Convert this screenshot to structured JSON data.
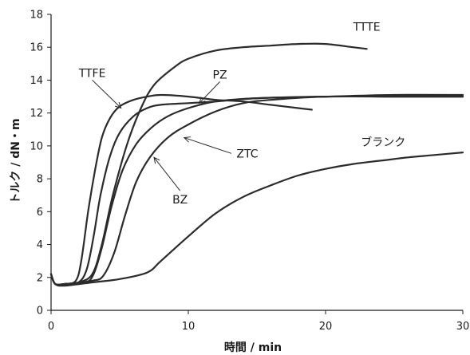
{
  "chart_data": {
    "type": "line",
    "xlabel": "時間 / min",
    "ylabel": "トルク / dN・m",
    "xlim": [
      0,
      30
    ],
    "ylim": [
      0,
      18
    ],
    "x_ticks": [
      0,
      10,
      20,
      30
    ],
    "y_ticks": [
      0,
      2,
      4,
      6,
      8,
      10,
      12,
      14,
      16,
      18
    ],
    "grid": false,
    "legend": "none",
    "series": [
      {
        "name": "TTTE",
        "points": [
          [
            0,
            2.2
          ],
          [
            0.3,
            1.6
          ],
          [
            1,
            1.6
          ],
          [
            2,
            1.7
          ],
          [
            3,
            2.2
          ],
          [
            3.7,
            4
          ],
          [
            4.5,
            7
          ],
          [
            5.5,
            10
          ],
          [
            6.5,
            12.2
          ],
          [
            7.5,
            13.7
          ],
          [
            9,
            14.8
          ],
          [
            10,
            15.3
          ],
          [
            12,
            15.8
          ],
          [
            14,
            16
          ],
          [
            16,
            16.1
          ],
          [
            18,
            16.2
          ],
          [
            20,
            16.2
          ],
          [
            22,
            16
          ],
          [
            23,
            15.9
          ]
        ]
      },
      {
        "name": "TTFE",
        "points": [
          [
            0,
            2.2
          ],
          [
            0.3,
            1.6
          ],
          [
            1,
            1.6
          ],
          [
            1.8,
            1.8
          ],
          [
            2.2,
            3
          ],
          [
            2.7,
            6
          ],
          [
            3.2,
            8.5
          ],
          [
            3.7,
            10.5
          ],
          [
            4.3,
            11.7
          ],
          [
            5,
            12.4
          ],
          [
            6,
            12.8
          ],
          [
            7,
            13
          ],
          [
            8,
            13.1
          ],
          [
            10,
            13
          ],
          [
            12,
            12.8
          ],
          [
            14,
            12.7
          ],
          [
            16,
            12.5
          ],
          [
            18,
            12.3
          ],
          [
            19,
            12.2
          ]
        ]
      },
      {
        "name": "PZ",
        "points": [
          [
            0,
            2.2
          ],
          [
            0.3,
            1.6
          ],
          [
            1,
            1.6
          ],
          [
            2,
            1.7
          ],
          [
            2.6,
            2.5
          ],
          [
            3.1,
            4.5
          ],
          [
            3.6,
            7
          ],
          [
            4.3,
            9.4
          ],
          [
            5,
            10.8
          ],
          [
            6,
            11.8
          ],
          [
            7,
            12.3
          ],
          [
            8,
            12.5
          ],
          [
            10,
            12.6
          ],
          [
            12,
            12.7
          ],
          [
            15,
            12.9
          ],
          [
            20,
            13
          ],
          [
            25,
            13.1
          ],
          [
            30,
            13.1
          ]
        ]
      },
      {
        "name": "ZTC",
        "points": [
          [
            0,
            2.2
          ],
          [
            0.3,
            1.6
          ],
          [
            1,
            1.6
          ],
          [
            2.5,
            1.7
          ],
          [
            3.1,
            2.2
          ],
          [
            3.7,
            3.8
          ],
          [
            4.4,
            6.3
          ],
          [
            5.2,
            8.5
          ],
          [
            6.2,
            10.1
          ],
          [
            7.3,
            11.1
          ],
          [
            8.5,
            11.8
          ],
          [
            10,
            12.3
          ],
          [
            12,
            12.7
          ],
          [
            15,
            12.9
          ],
          [
            20,
            13
          ],
          [
            25,
            13
          ],
          [
            30,
            13
          ]
        ]
      },
      {
        "name": "BZ",
        "points": [
          [
            0,
            2.2
          ],
          [
            0.3,
            1.6
          ],
          [
            1,
            1.6
          ],
          [
            3,
            1.8
          ],
          [
            3.8,
            2.1
          ],
          [
            4.6,
            3.5
          ],
          [
            5.4,
            5.8
          ],
          [
            6.2,
            7.8
          ],
          [
            7.2,
            9.3
          ],
          [
            8.5,
            10.5
          ],
          [
            10,
            11.3
          ],
          [
            12,
            12.1
          ],
          [
            14,
            12.6
          ],
          [
            16,
            12.8
          ],
          [
            20,
            13
          ],
          [
            25,
            13
          ],
          [
            30,
            13
          ]
        ]
      },
      {
        "name": "ブランク",
        "points": [
          [
            0,
            2.2
          ],
          [
            0.3,
            1.6
          ],
          [
            1,
            1.5
          ],
          [
            3,
            1.7
          ],
          [
            5,
            1.9
          ],
          [
            7,
            2.3
          ],
          [
            8,
            3
          ],
          [
            10,
            4.5
          ],
          [
            12,
            5.9
          ],
          [
            14,
            6.9
          ],
          [
            16,
            7.6
          ],
          [
            18,
            8.2
          ],
          [
            20,
            8.6
          ],
          [
            22,
            8.9
          ],
          [
            24,
            9.1
          ],
          [
            26,
            9.3
          ],
          [
            28,
            9.45
          ],
          [
            30,
            9.6
          ]
        ]
      }
    ],
    "annotations": [
      {
        "series": "TTTE",
        "text": "TTTE",
        "text_xy": [
          23,
          17.0
        ],
        "arrow_to": null
      },
      {
        "series": "TTFE",
        "text": "TTFE",
        "text_xy": [
          3.0,
          14.2
        ],
        "arrow_to": [
          5.1,
          12.3
        ]
      },
      {
        "series": "PZ",
        "text": "PZ",
        "text_xy": [
          12.3,
          14.1
        ],
        "arrow_to": [
          10.8,
          12.6
        ]
      },
      {
        "series": "ZTC",
        "text": "ZTC",
        "text_xy": [
          14.3,
          9.3
        ],
        "arrow_to": [
          9.7,
          10.5
        ]
      },
      {
        "series": "BZ",
        "text": "BZ",
        "text_xy": [
          9.4,
          6.5
        ],
        "arrow_to": [
          7.5,
          9.3
        ]
      },
      {
        "series": "ブランク",
        "text": "ブランク",
        "text_xy": [
          24.2,
          10.0
        ],
        "arrow_to": null
      }
    ]
  }
}
